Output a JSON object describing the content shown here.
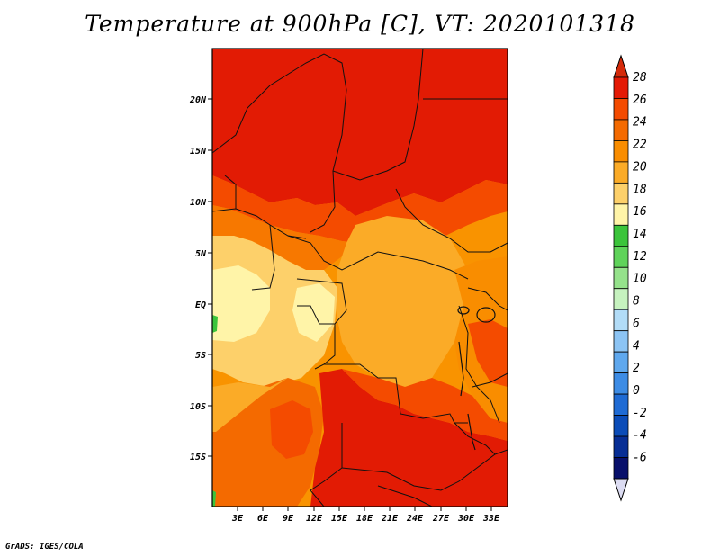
{
  "title": "Temperature at 900hPa [C], VT: 2020101318",
  "footer": "GrADS: IGES/COLA",
  "lat_ticks": [
    "20N",
    "15N",
    "10N",
    "5N",
    "EQ",
    "5S",
    "10S",
    "15S"
  ],
  "lon_ticks": [
    "3E",
    "6E",
    "9E",
    "12E",
    "15E",
    "18E",
    "21E",
    "24E",
    "27E",
    "30E",
    "33E"
  ],
  "colorbar": {
    "labels": [
      "28",
      "26",
      "24",
      "22",
      "20",
      "18",
      "16",
      "14",
      "12",
      "10",
      "8",
      "6",
      "4",
      "2",
      "0",
      "-2",
      "-4",
      "-6"
    ],
    "colors": [
      "#e41a05",
      "#f44b00",
      "#f46a00",
      "#f98d00",
      "#fbab27",
      "#fdd06a",
      "#fff4a8",
      "#3bc43b",
      "#5fd35a",
      "#95e28b",
      "#c6f2bf",
      "#b2dcf7",
      "#8cc4f4",
      "#5fa8ee",
      "#3d8ce5",
      "#1f6bd4",
      "#0b4cb8",
      "#072e95",
      "#08106b"
    ],
    "upper_arrow_color": "#d42a0a",
    "lower_arrow_color": "#dcdcf2"
  }
}
